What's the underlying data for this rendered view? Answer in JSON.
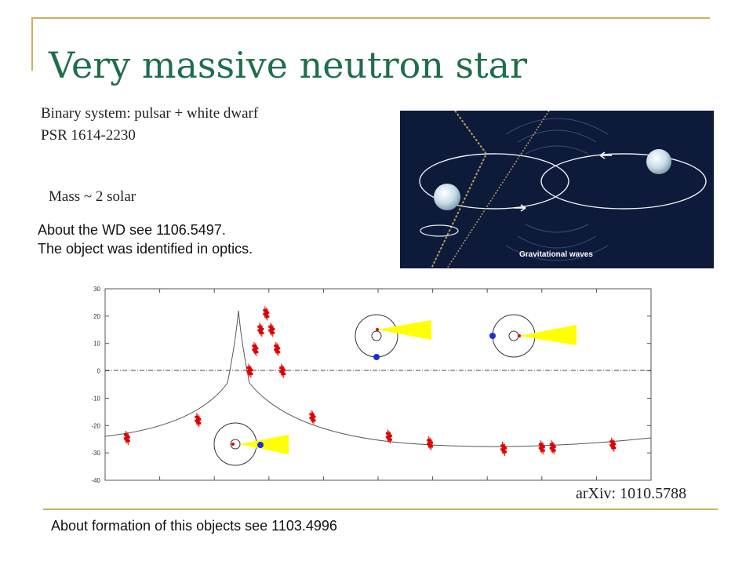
{
  "slide": {
    "title": "Very massive neutron star",
    "line1": "Binary system: pulsar + white dwarf",
    "line2": "PSR 1614-2230",
    "mass": "Mass ~ 2 solar",
    "wd_line1": "About the WD see 1106.5497.",
    "wd_line2": "The object was identified in optics.",
    "arxiv": "arXiv: 1010.5788",
    "formation": "About formation of this objects see 1103.4996"
  },
  "figure": {
    "caption": "Gravitational waves"
  },
  "colors": {
    "title": "#1f6e4a",
    "accent_lines": "#c9b25a",
    "data_points": "#e00000",
    "wedge": "#ffff00",
    "companion_dot": "#1a2fe0",
    "figure_bg": "#0d1a3a"
  },
  "chart_data": {
    "type": "scatter",
    "y_tick_labels": [
      "30",
      "20",
      "10",
      "0",
      "-10",
      "-20",
      "-30",
      "-40"
    ],
    "ylim": [
      -40,
      30
    ],
    "xlim": [
      0,
      1
    ],
    "zero_line": "dashed",
    "model_curve": "Shapiro delay",
    "clusters": [
      {
        "x": 0.04,
        "y": -24.5
      },
      {
        "x": 0.17,
        "y": -18
      },
      {
        "x": 0.265,
        "y": 0
      },
      {
        "x": 0.275,
        "y": 8
      },
      {
        "x": 0.285,
        "y": 15
      },
      {
        "x": 0.295,
        "y": 21
      },
      {
        "x": 0.305,
        "y": 15
      },
      {
        "x": 0.315,
        "y": 8
      },
      {
        "x": 0.325,
        "y": 0
      },
      {
        "x": 0.38,
        "y": -17
      },
      {
        "x": 0.52,
        "y": -24
      },
      {
        "x": 0.595,
        "y": -26.5
      },
      {
        "x": 0.73,
        "y": -28.5
      },
      {
        "x": 0.8,
        "y": -28
      },
      {
        "x": 0.82,
        "y": -28
      },
      {
        "x": 0.93,
        "y": -27
      }
    ]
  }
}
